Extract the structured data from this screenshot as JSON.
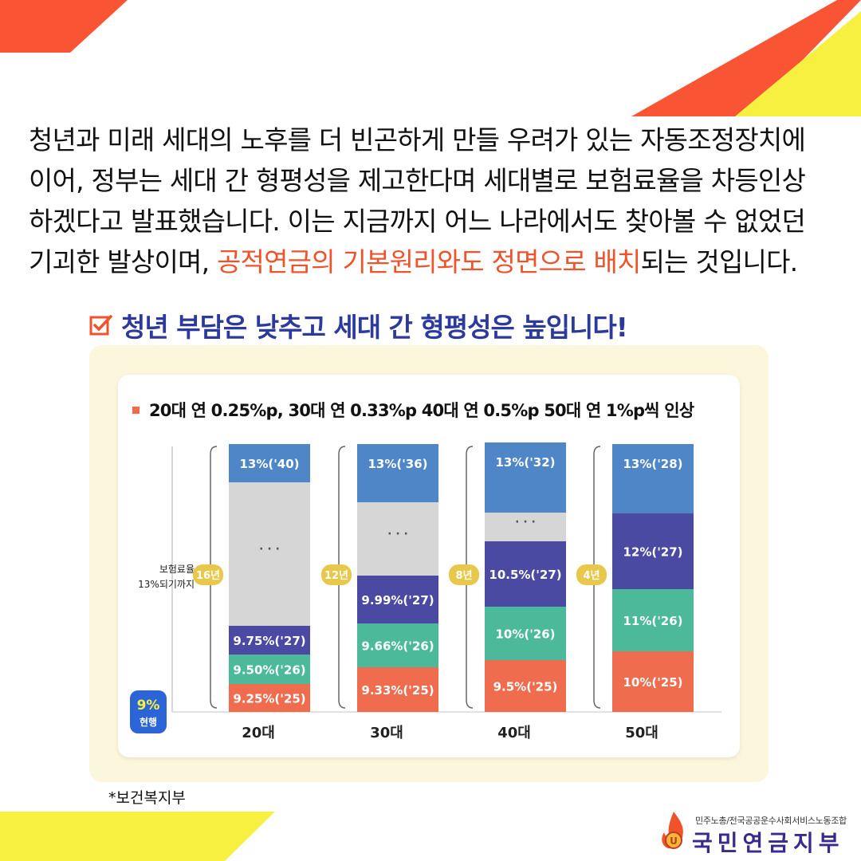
{
  "intro": {
    "line1": "청년과 미래 세대의 노후를 더 빈곤하게 만들 우려가 있는 자동조정장치에",
    "line2": "이어, 정부는 세대 간 형평성을 제고한다며 세대별로 보험료율을 차등인상",
    "line3": "하겠다고 발표했습니다. 이는 지금까지 어느 나라에서도 찾아볼 수 없었던",
    "line4_pre": "기괴한 발상이며, ",
    "line4_highlight": "공적연금의 기본원리와도 정면으로 배치",
    "line4_post": "되는 것입니다."
  },
  "heading": "청년 부담은 낮추고 세대 간 형평성은 높입니다!",
  "subtitle": "20대 연 0.25%p, 30대 연 0.33%p 40대 연 0.5%p 50대 연 1%p씩 인상",
  "side_label": {
    "line1": "보험료율",
    "line2": "13%되기까지"
  },
  "current_badge": {
    "line1": "9%",
    "line2": "현행"
  },
  "source": "*보건복지부",
  "logo": {
    "small": "민주노총/전국공공운수사회서비스노동조합",
    "big": "국민연금지부"
  },
  "colors": {
    "accent_red": "#f0522a",
    "heading_blue": "#2b3a9c",
    "seg_13": "#4e86c8",
    "seg_gap": "#d6d6d6",
    "seg_purple": "#4a4aa3",
    "seg_green": "#4cb99a",
    "seg_orange": "#ef6c4f",
    "year_badge": "#e8c84a",
    "current_badge": "#2b64d6"
  },
  "chart_data": {
    "type": "bar",
    "title": "20대 연 0.25%p, 30대 연 0.33%p 40대 연 0.5%p 50대 연 1%p씩 인상",
    "ylabel": "보험료율 13%되기까지",
    "categories": [
      "20대",
      "30대",
      "40대",
      "50대"
    ],
    "years_to_13": [
      "16년",
      "12년",
      "8년",
      "4년"
    ],
    "stacks": [
      [
        {
          "label": "9.25%('25)",
          "value": 9.25,
          "year": "'25",
          "color": "orange"
        },
        {
          "label": "9.50%('26)",
          "value": 9.5,
          "year": "'26",
          "color": "green"
        },
        {
          "label": "9.75%('27)",
          "value": 9.75,
          "year": "'27",
          "color": "purple"
        },
        {
          "label": "· · ·",
          "gap": true,
          "color": "gap"
        },
        {
          "label": "13%('40)",
          "value": 13,
          "year": "'40",
          "color": "blue"
        }
      ],
      [
        {
          "label": "9.33%('25)",
          "value": 9.33,
          "year": "'25",
          "color": "orange"
        },
        {
          "label": "9.66%('26)",
          "value": 9.66,
          "year": "'26",
          "color": "green"
        },
        {
          "label": "9.99%('27)",
          "value": 9.99,
          "year": "'27",
          "color": "purple"
        },
        {
          "label": "· · ·",
          "gap": true,
          "color": "gap"
        },
        {
          "label": "13%('36)",
          "value": 13,
          "year": "'36",
          "color": "blue"
        }
      ],
      [
        {
          "label": "9.5%('25)",
          "value": 9.5,
          "year": "'25",
          "color": "orange"
        },
        {
          "label": "10%('26)",
          "value": 10,
          "year": "'26",
          "color": "green"
        },
        {
          "label": "10.5%('27)",
          "value": 10.5,
          "year": "'27",
          "color": "purple"
        },
        {
          "label": "· · ·",
          "gap": true,
          "color": "gap"
        },
        {
          "label": "13%('32)",
          "value": 13,
          "year": "'32",
          "color": "blue"
        }
      ],
      [
        {
          "label": "10%('25)",
          "value": 10,
          "year": "'25",
          "color": "orange"
        },
        {
          "label": "11%('26)",
          "value": 11,
          "year": "'26",
          "color": "green"
        },
        {
          "label": "12%('27)",
          "value": 12,
          "year": "'27",
          "color": "purple"
        },
        {
          "label": "13%('28)",
          "value": 13,
          "year": "'28",
          "color": "blue"
        }
      ]
    ],
    "baseline": 9,
    "legend": "none",
    "grid": false
  }
}
